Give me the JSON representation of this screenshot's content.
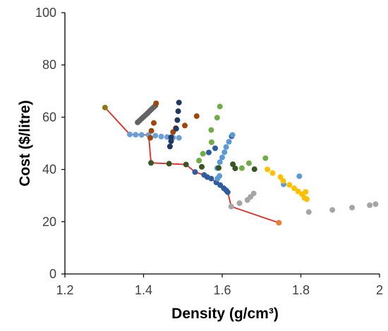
{
  "chart_data": {
    "type": "scatter",
    "xlabel": "Density (g/cm³)",
    "ylabel": "Cost ($/litre)",
    "xlim": [
      1.2,
      2.0
    ],
    "ylim": [
      0,
      100
    ],
    "x_ticks": [
      1.2,
      1.4,
      1.6,
      1.8,
      2.0
    ],
    "x_tick_labels": [
      "1.2",
      "1.4",
      "1.6",
      "1.8",
      "2"
    ],
    "y_ticks": [
      0,
      20,
      40,
      60,
      80,
      100
    ],
    "y_tick_labels": [
      "0",
      "20",
      "40",
      "60",
      "80",
      "100"
    ],
    "grid": false,
    "legend": "none",
    "frontier_color": "#e8241f",
    "frontier": [
      [
        1.302,
        63.7
      ],
      [
        1.365,
        53.4
      ],
      [
        1.413,
        53.2
      ],
      [
        1.419,
        42.5
      ],
      [
        1.465,
        42.2
      ],
      [
        1.508,
        41.9
      ],
      [
        1.531,
        39.0
      ],
      [
        1.554,
        37.9
      ],
      [
        1.572,
        36.5
      ],
      [
        1.614,
        31.3
      ],
      [
        1.623,
        25.8
      ],
      [
        1.744,
        19.6
      ]
    ],
    "series": [
      {
        "color": "#8a7a10",
        "points": [
          [
            1.302,
            63.7
          ]
        ]
      },
      {
        "color": "#ed7d31",
        "points": [
          [
            1.744,
            19.6
          ]
        ]
      },
      {
        "color": "#636363",
        "points": [
          [
            1.385,
            58.0
          ],
          [
            1.39,
            58.7
          ],
          [
            1.395,
            59.4
          ],
          [
            1.4,
            60.1
          ],
          [
            1.405,
            60.8
          ],
          [
            1.41,
            61.5
          ],
          [
            1.415,
            62.3
          ],
          [
            1.42,
            63.0
          ],
          [
            1.425,
            63.7
          ],
          [
            1.43,
            64.4
          ]
        ]
      },
      {
        "color": "#6a9fd8",
        "points": [
          [
            1.365,
            53.4
          ],
          [
            1.38,
            53.3
          ],
          [
            1.395,
            53.2
          ],
          [
            1.413,
            53.2
          ],
          [
            1.43,
            52.9
          ],
          [
            1.445,
            52.6
          ],
          [
            1.46,
            52.4
          ],
          [
            1.475,
            52.2
          ],
          [
            1.49,
            52.1
          ]
        ]
      },
      {
        "color": "#a0460a",
        "points": [
          [
            1.432,
            65.3
          ],
          [
            1.426,
            57.8
          ],
          [
            1.42,
            54.8
          ],
          [
            1.417,
            52.1
          ],
          [
            1.482,
            55.8
          ],
          [
            1.475,
            54.3
          ],
          [
            1.505,
            56.8
          ],
          [
            1.535,
            60.4
          ]
        ]
      },
      {
        "color": "#203864",
        "points": [
          [
            1.49,
            65.6
          ],
          [
            1.488,
            62.3
          ],
          [
            1.486,
            58.9
          ],
          [
            1.483,
            55.6
          ],
          [
            1.47,
            50.8
          ],
          [
            1.467,
            48.8
          ],
          [
            1.47,
            52.3
          ]
        ]
      },
      {
        "color": "#2e5d9f",
        "points": [
          [
            1.531,
            39.0
          ],
          [
            1.554,
            37.9
          ],
          [
            1.562,
            37.1
          ],
          [
            1.572,
            36.5
          ],
          [
            1.585,
            35.0
          ],
          [
            1.595,
            34.0
          ],
          [
            1.604,
            32.8
          ],
          [
            1.61,
            32.0
          ],
          [
            1.614,
            31.3
          ],
          [
            1.566,
            46.5
          ],
          [
            1.582,
            48.1
          ],
          [
            1.624,
            52.7
          ]
        ]
      },
      {
        "color": "#5b9bd5",
        "points": [
          [
            1.587,
            40.5
          ],
          [
            1.594,
            42.8
          ],
          [
            1.6,
            44.6
          ],
          [
            1.606,
            46.6
          ],
          [
            1.61,
            48.6
          ],
          [
            1.617,
            50.6
          ],
          [
            1.626,
            53.2
          ],
          [
            1.593,
            37.5
          ],
          [
            1.588,
            36.5
          ],
          [
            1.756,
            34.3
          ],
          [
            1.796,
            37.4
          ]
        ]
      },
      {
        "color": "#70ad47",
        "points": [
          [
            1.594,
            64.1
          ],
          [
            1.587,
            59.8
          ],
          [
            1.572,
            55.1
          ],
          [
            1.573,
            50.4
          ],
          [
            1.551,
            46.0
          ],
          [
            1.541,
            43.4
          ],
          [
            1.65,
            40.5
          ],
          [
            1.668,
            42.4
          ],
          [
            1.71,
            44.3
          ]
        ]
      },
      {
        "color": "#375623",
        "points": [
          [
            1.465,
            42.2
          ],
          [
            1.508,
            41.9
          ],
          [
            1.591,
            40.6
          ],
          [
            1.627,
            42.0
          ],
          [
            1.633,
            40.4
          ],
          [
            1.682,
            40.1
          ],
          [
            1.419,
            42.5
          ],
          [
            1.548,
            41.0
          ]
        ]
      },
      {
        "color": "#ffc000",
        "points": [
          [
            1.715,
            40.0
          ],
          [
            1.728,
            38.6
          ],
          [
            1.748,
            37.1
          ],
          [
            1.755,
            35.6
          ],
          [
            1.771,
            34.1
          ],
          [
            1.783,
            32.8
          ],
          [
            1.793,
            31.6
          ],
          [
            1.803,
            30.5
          ],
          [
            1.809,
            29.1
          ],
          [
            1.815,
            28.6
          ],
          [
            1.812,
            31.4
          ]
        ]
      },
      {
        "color": "#a5a5a5",
        "points": [
          [
            1.623,
            25.8
          ],
          [
            1.644,
            27.1
          ],
          [
            1.664,
            28.3
          ],
          [
            1.672,
            29.5
          ],
          [
            1.68,
            30.8
          ],
          [
            1.82,
            23.7
          ],
          [
            1.88,
            24.5
          ],
          [
            1.93,
            25.4
          ],
          [
            1.975,
            26.3
          ],
          [
            1.99,
            26.7
          ]
        ]
      }
    ]
  }
}
